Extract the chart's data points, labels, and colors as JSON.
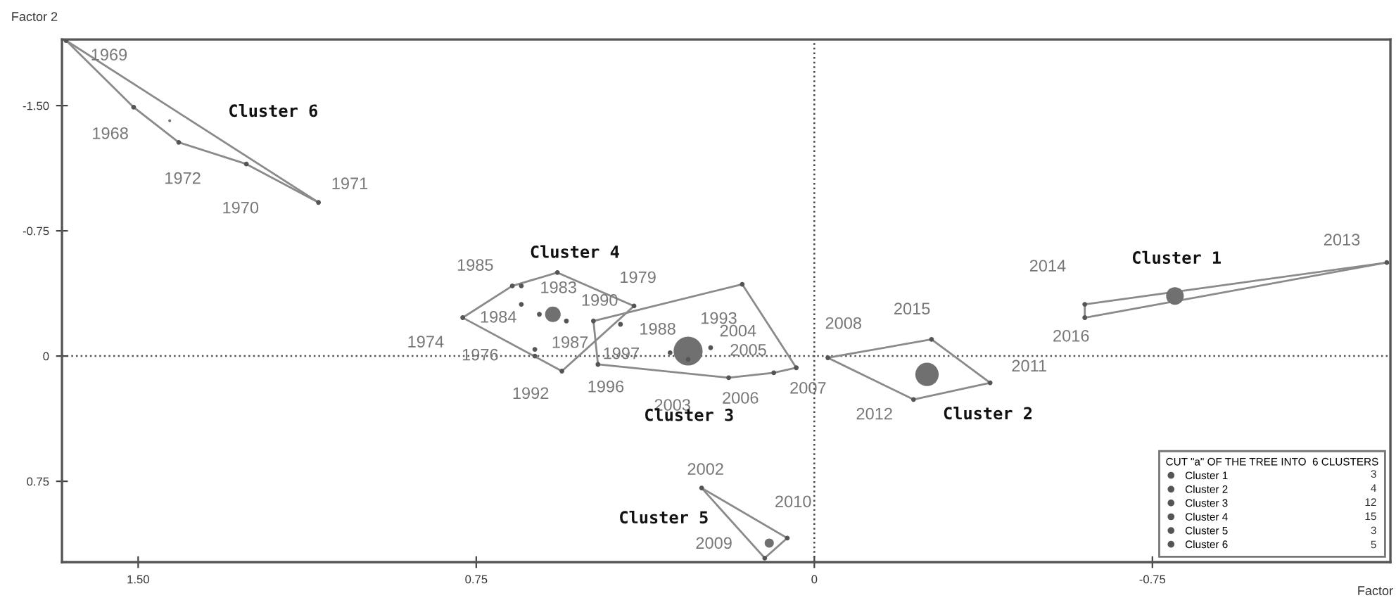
{
  "chart_data": {
    "type": "scatter",
    "xlabel": "Factor",
    "ylabel": "Factor 2",
    "legend_title": "CUT \"a\" OF THE TREE INTO  6 CLUSTERS",
    "xlim": [
      1.669,
      -1.278
    ],
    "ylim": [
      1.234,
      -1.896
    ],
    "xticks": [
      {
        "value": 1.5,
        "label": "1.50"
      },
      {
        "value": 0.75,
        "label": "0.75"
      },
      0,
      {
        "value": -0.75,
        "label": "-0.75"
      }
    ],
    "yticks": [
      {
        "value": -1.5,
        "label": "-1.50"
      },
      {
        "value": -0.75,
        "label": "-0.75"
      },
      0,
      {
        "value": 0.75,
        "label": "0.75"
      }
    ],
    "grid": false,
    "legend": "bottom right",
    "marker": "circle",
    "ref_lines": [
      {
        "axis": "x",
        "value": 0,
        "line_style": "dotted",
        "color": "#444444"
      },
      {
        "axis": "y",
        "value": 0,
        "line_style": "dotted",
        "color": "#555555"
      }
    ],
    "series": [
      {
        "name": "Cluster 1",
        "color": "#555555",
        "x": [
          -0.6,
          -0.6,
          -1.27
        ],
        "values": [
          -0.31,
          -0.23,
          -0.56
        ]
      },
      {
        "name": "Cluster 2",
        "color": "#555555",
        "x": [
          -0.03,
          -0.26,
          -0.39,
          -0.22
        ],
        "values": [
          0.01,
          -0.1,
          0.16,
          0.26
        ]
      },
      {
        "name": "Cluster 3",
        "color": "#555555",
        "x": [
          0.49,
          0.16,
          0.04,
          0.09,
          0.19,
          0.48,
          0.23,
          0.32,
          0.28,
          0.43
        ],
        "values": [
          -0.21,
          -0.43,
          0.07,
          0.1,
          0.13,
          0.05,
          -0.05,
          -0.02,
          0.02,
          -0.19
        ]
      },
      {
        "name": "Cluster 4",
        "color": "#555555",
        "x": [
          0.78,
          0.67,
          0.65,
          0.57,
          0.4,
          0.65,
          0.61,
          0.55,
          0.62,
          0.62,
          0.56
        ],
        "values": [
          -0.23,
          -0.42,
          -0.42,
          -0.5,
          -0.3,
          -0.31,
          -0.25,
          -0.21,
          -0.04,
          0.0,
          0.09
        ]
      },
      {
        "name": "Cluster 5",
        "color": "#555555",
        "x": [
          0.25,
          0.06,
          0.11
        ],
        "values": [
          0.79,
          1.09,
          1.21
        ]
      },
      {
        "name": "Cluster 6",
        "color": "#555555",
        "x": [
          1.66,
          1.51,
          1.41,
          1.26,
          1.1
        ],
        "values": [
          -1.89,
          -1.49,
          -1.28,
          -1.15,
          -0.92
        ]
      },
      {
        "type": "bubble",
        "color": "#707070",
        "x": [
          -0.8,
          -0.25,
          0.28,
          0.58,
          0.1,
          1.43
        ],
        "values": [
          -0.36,
          0.11,
          -0.03,
          -0.25,
          1.12,
          -1.41
        ],
        "sizes": [
          0.37,
          0.65,
          1,
          0.29,
          0.1,
          0.01
        ]
      },
      {
        "type": "line",
        "marker": "none",
        "color": "#8a8a8a",
        "x": [
          -1.27,
          -0.6,
          -0.6
        ],
        "values": [
          -0.56,
          -0.31,
          -0.23
        ]
      },
      {
        "type": "line",
        "marker": "none",
        "color": "#8a8a8a",
        "x": [
          -1.27,
          -0.6
        ],
        "values": [
          -0.56,
          -0.23
        ]
      },
      {
        "type": "line",
        "marker": "none",
        "color": "#8a8a8a",
        "x": [
          -0.39,
          -0.26,
          -0.03
        ],
        "values": [
          0.16,
          -0.1,
          0.01
        ]
      },
      {
        "type": "line",
        "marker": "none",
        "color": "#8a8a8a",
        "x": [
          -0.39,
          -0.22,
          -0.03
        ],
        "values": [
          0.16,
          0.26,
          0.01
        ]
      },
      {
        "type": "line",
        "marker": "none",
        "color": "#8a8a8a",
        "x": [
          0.04,
          0.16,
          0.49
        ],
        "values": [
          0.07,
          -0.43,
          -0.21
        ]
      },
      {
        "type": "line",
        "marker": "none",
        "color": "#8a8a8a",
        "x": [
          0.04,
          0.09,
          0.19,
          0.48,
          0.49
        ],
        "values": [
          0.07,
          0.1,
          0.13,
          0.05,
          -0.21
        ]
      },
      {
        "type": "line",
        "marker": "none",
        "color": "#8a8a8a",
        "x": [
          0.4,
          0.57,
          0.67,
          0.78
        ],
        "values": [
          -0.3,
          -0.5,
          -0.42,
          -0.23
        ]
      },
      {
        "type": "line",
        "marker": "none",
        "color": "#8a8a8a",
        "x": [
          0.4,
          0.56,
          0.78
        ],
        "values": [
          -0.3,
          0.09,
          -0.23
        ]
      },
      {
        "type": "line",
        "marker": "none",
        "color": "#8a8a8a",
        "x": [
          0.06,
          0.25
        ],
        "values": [
          1.09,
          0.79
        ]
      },
      {
        "type": "line",
        "marker": "none",
        "color": "#8a8a8a",
        "x": [
          0.06,
          0.11,
          0.25
        ],
        "values": [
          1.09,
          1.21,
          0.79
        ]
      },
      {
        "type": "line",
        "marker": "none",
        "color": "#8a8a8a",
        "x": [
          1.1,
          1.66
        ],
        "values": [
          -0.92,
          -1.89
        ]
      },
      {
        "type": "line",
        "marker": "none",
        "color": "#8a8a8a",
        "x": [
          1.1,
          1.26,
          1.41,
          1.51,
          1.66
        ],
        "values": [
          -0.92,
          -1.15,
          -1.28,
          -1.49,
          -1.89
        ]
      }
    ],
    "annotations": [
      {
        "text": "1969",
        "x": 1.66,
        "y": -1.89
      },
      {
        "text": "1968",
        "x": 1.51,
        "y": -1.49
      },
      {
        "text": "1972",
        "x": 1.41,
        "y": -1.28
      },
      {
        "text": "1970",
        "x": 1.26,
        "y": -1.15
      },
      {
        "text": "1971",
        "x": 1.1,
        "y": -0.92
      },
      {
        "text": "1974",
        "x": 0.78,
        "y": -0.23
      },
      {
        "text": "1985",
        "x": 0.67,
        "y": -0.42
      },
      {
        "text": "1983",
        "x": 0.65,
        "y": -0.31
      },
      {
        "text": "1984",
        "x": 0.61,
        "y": -0.25
      },
      {
        "text": "1990",
        "x": 0.55,
        "y": -0.21
      },
      {
        "text": "1987",
        "x": 0.62,
        "y": -0.04
      },
      {
        "text": "1976",
        "x": 0.62,
        "y": 0.0
      },
      {
        "text": "1992",
        "x": 0.56,
        "y": 0.09
      },
      {
        "text": "1979",
        "x": 0.4,
        "y": -0.3
      },
      {
        "text": "1988",
        "x": 0.43,
        "y": -0.19
      },
      {
        "text": "1993",
        "x": 0.16,
        "y": -0.43
      },
      {
        "text": "1997",
        "x": 0.32,
        "y": -0.02
      },
      {
        "text": "2004",
        "x": 0.23,
        "y": -0.05
      },
      {
        "text": "2005",
        "x": 0.09,
        "y": 0.1
      },
      {
        "text": "2003",
        "x": 0.28,
        "y": 0.02
      },
      {
        "text": "2006",
        "x": 0.19,
        "y": 0.13
      },
      {
        "text": "2007",
        "x": 0.04,
        "y": 0.07
      },
      {
        "text": "1996",
        "x": 0.48,
        "y": 0.05
      },
      {
        "text": "2008",
        "x": -0.03,
        "y": 0.01
      },
      {
        "text": "2015",
        "x": -0.26,
        "y": -0.1
      },
      {
        "text": "2011",
        "x": -0.39,
        "y": 0.16
      },
      {
        "text": "2012",
        "x": -0.22,
        "y": 0.26
      },
      {
        "text": "2014",
        "x": -0.6,
        "y": -0.31
      },
      {
        "text": "2016",
        "x": -0.6,
        "y": -0.23
      },
      {
        "text": "2013",
        "x": -1.27,
        "y": -0.56
      },
      {
        "text": "2002",
        "x": 0.25,
        "y": 0.79
      },
      {
        "text": "2010",
        "x": 0.06,
        "y": 1.09
      },
      {
        "text": "2009",
        "x": 0.11,
        "y": 1.21
      },
      "Cluster 6",
      "Cluster 4",
      "Cluster 3",
      "Cluster 1",
      "Cluster 2",
      "Cluster 5",
      "3",
      "4",
      "12",
      "15",
      "3",
      "5"
    ]
  }
}
